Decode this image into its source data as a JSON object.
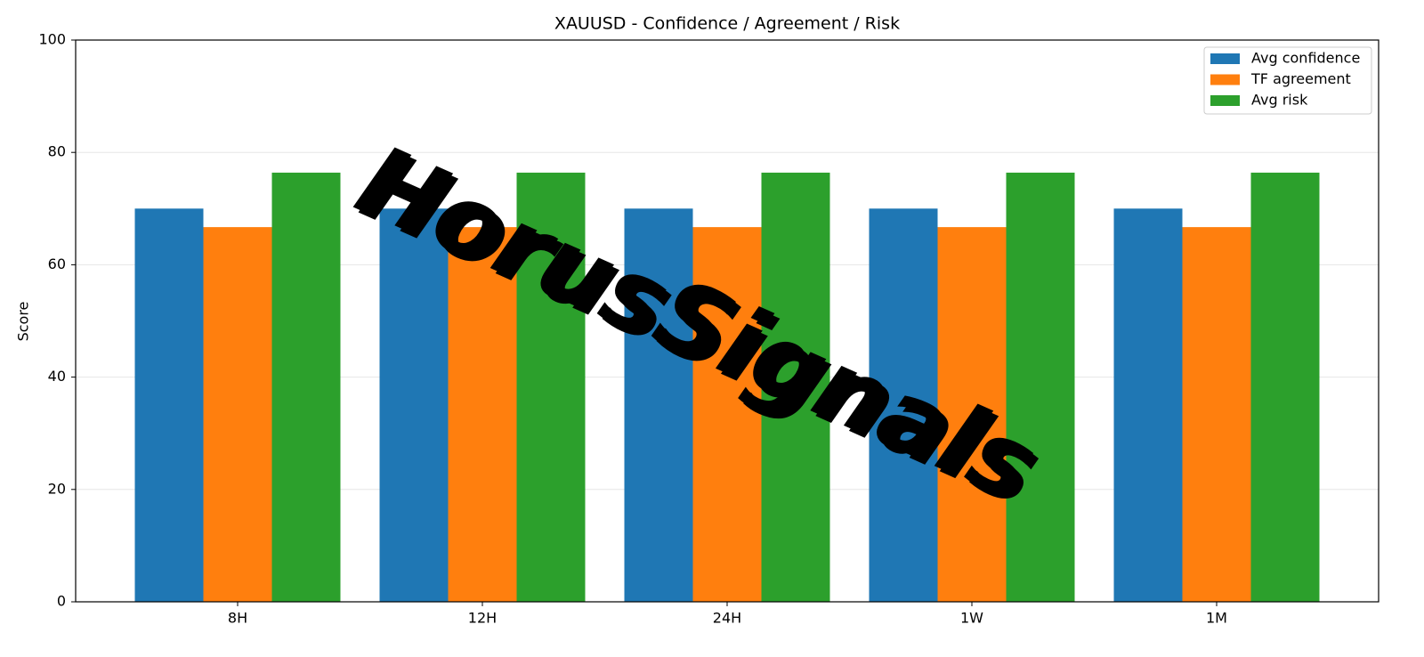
{
  "chart_data": {
    "type": "bar",
    "title": "XAUUSD - Confidence / Agreement / Risk",
    "y_label": "Score",
    "categories": [
      "8H",
      "12H",
      "24H",
      "1W",
      "1M"
    ],
    "series": [
      {
        "name": "Avg confidence",
        "color": "#1f77b4",
        "values": [
          70,
          70,
          70,
          70,
          70
        ]
      },
      {
        "name": "TF agreement",
        "color": "#ff7f0e",
        "values": [
          66.7,
          66.7,
          66.7,
          66.7,
          66.7
        ]
      },
      {
        "name": "Avg risk",
        "color": "#2ca02c",
        "values": [
          76.4,
          76.4,
          76.4,
          76.4,
          76.4
        ]
      }
    ],
    "ylim": [
      0,
      100
    ],
    "yticks": [
      0,
      20,
      40,
      60,
      80,
      100
    ],
    "grid": true,
    "legend": "upper right",
    "watermark": "HorusSignals"
  }
}
